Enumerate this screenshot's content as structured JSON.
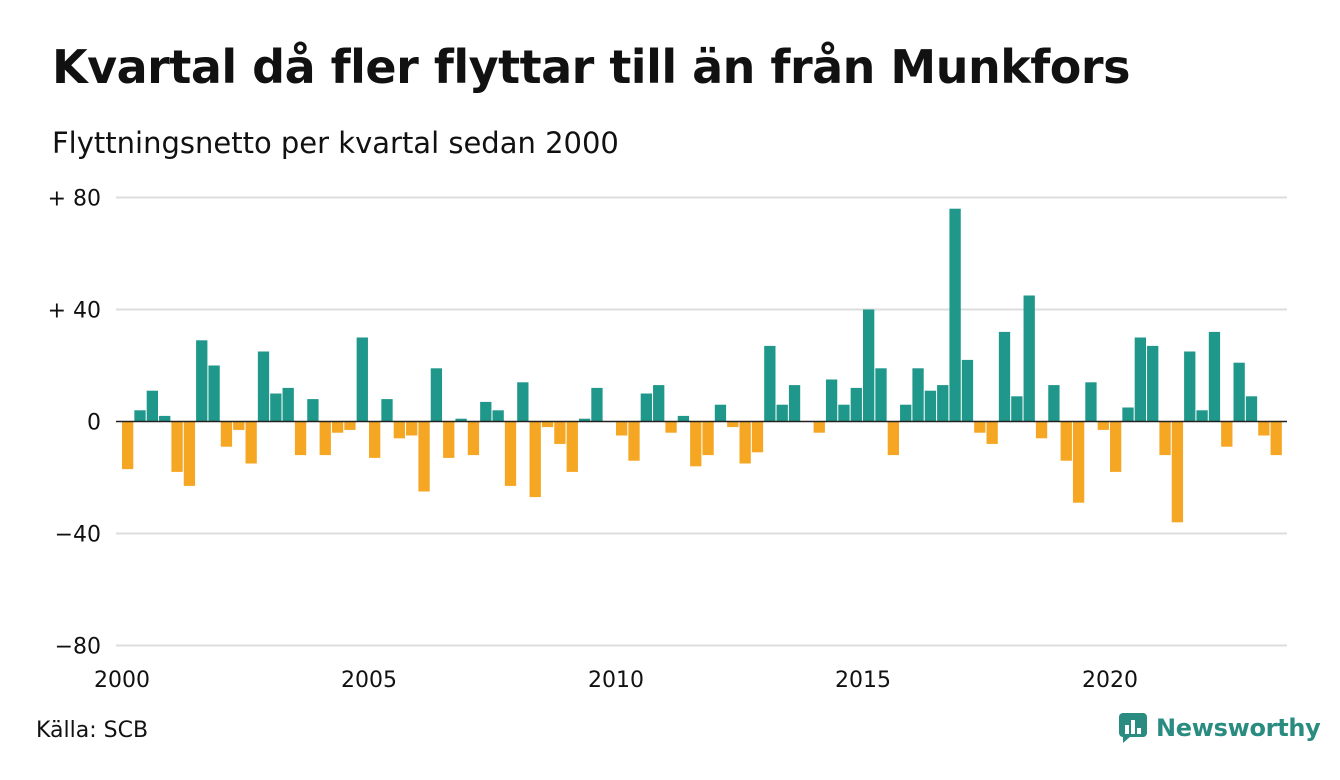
{
  "header": {
    "title": "Kvartal då fler flyttar till än från Munkfors",
    "subtitle": "Flyttningsnetto per kvartal sedan 2000"
  },
  "footer": {
    "source": "Källa: SCB",
    "brand": "Newsworthy"
  },
  "colors": {
    "positive": "#1f978a",
    "negative": "#f5a623",
    "grid": "#dddddd",
    "baseline": "#222222",
    "brand": "#2a8c80"
  },
  "chart_data": {
    "type": "bar",
    "x_start": "2000 Q1",
    "quarters_per_year": 4,
    "values": [
      -17,
      4,
      11,
      2,
      -18,
      -23,
      29,
      20,
      -9,
      -3,
      -15,
      25,
      10,
      12,
      -12,
      8,
      -12,
      -4,
      -3,
      30,
      -13,
      8,
      -6,
      -5,
      -25,
      19,
      -13,
      1,
      -12,
      7,
      4,
      -23,
      14,
      -27,
      -2,
      -8,
      -18,
      1,
      12,
      0,
      -5,
      -14,
      10,
      13,
      -4,
      2,
      -16,
      -12,
      6,
      -2,
      -15,
      -11,
      27,
      6,
      13,
      0,
      -4,
      15,
      6,
      12,
      40,
      19,
      -12,
      6,
      19,
      11,
      13,
      76,
      22,
      -4,
      -8,
      32,
      9,
      45,
      -6,
      13,
      -14,
      -29,
      14,
      -3,
      -18,
      5,
      30,
      27,
      -12,
      -36,
      25,
      4,
      32,
      -9,
      21,
      9,
      -5,
      -12
    ],
    "ylim": [
      -80,
      80
    ],
    "yticks": [
      80,
      40,
      0,
      -40,
      -80
    ],
    "ytick_labels": [
      "+ 80",
      "+ 40",
      "0",
      "−40",
      "−80"
    ],
    "xticks": [
      "2000",
      "2005",
      "2010",
      "2015",
      "2020"
    ],
    "grid": true,
    "legend": "none"
  }
}
